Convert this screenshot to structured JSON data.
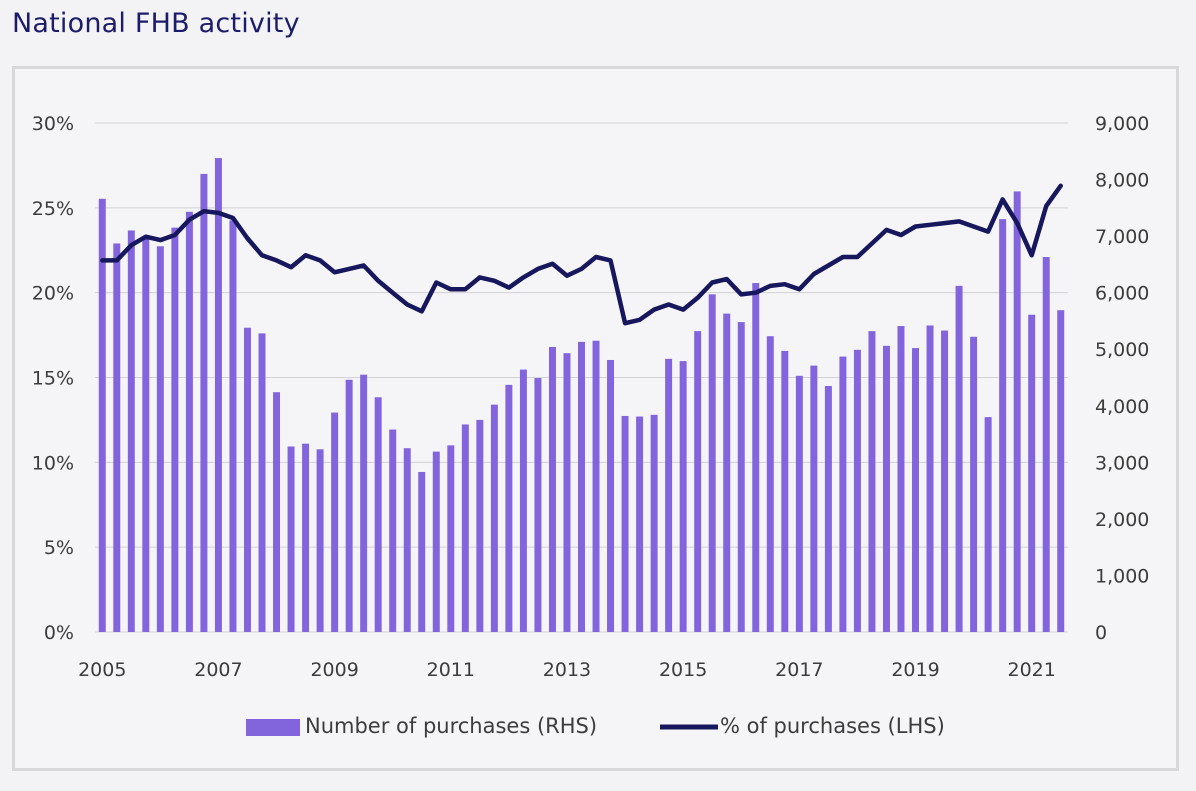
{
  "page": {
    "title": "National FHB activity"
  },
  "colors": {
    "bars": "#8264dc",
    "line": "#17175e",
    "grid": "#d2d2d6",
    "text": "#3c3c3c"
  },
  "chart_data": {
    "type": "bar",
    "title": "National FHB activity",
    "x_tick_labels": [
      "2005",
      "2007",
      "2009",
      "2011",
      "2013",
      "2015",
      "2017",
      "2019",
      "2021"
    ],
    "left_axis": {
      "ticks": [
        "0%",
        "5%",
        "10%",
        "15%",
        "20%",
        "25%",
        "30%"
      ],
      "ylim": [
        0,
        30
      ]
    },
    "right_axis": {
      "ticks": [
        "0",
        "1,000",
        "2,000",
        "3,000",
        "4,000",
        "5,000",
        "6,000",
        "7,000",
        "8,000",
        "9,000"
      ],
      "ylim": [
        0,
        9000
      ]
    },
    "grid": true,
    "legend_position": "bottom",
    "periods": [
      "2005 Q1",
      "2005 Q2",
      "2005 Q3",
      "2005 Q4",
      "2006 Q1",
      "2006 Q2",
      "2006 Q3",
      "2006 Q4",
      "2007 Q1",
      "2007 Q2",
      "2007 Q3",
      "2007 Q4",
      "2008 Q1",
      "2008 Q2",
      "2008 Q3",
      "2008 Q4",
      "2009 Q1",
      "2009 Q2",
      "2009 Q3",
      "2009 Q4",
      "2010 Q1",
      "2010 Q2",
      "2010 Q3",
      "2010 Q4",
      "2011 Q1",
      "2011 Q2",
      "2011 Q3",
      "2011 Q4",
      "2012 Q1",
      "2012 Q2",
      "2012 Q3",
      "2012 Q4",
      "2013 Q1",
      "2013 Q2",
      "2013 Q3",
      "2013 Q4",
      "2014 Q1",
      "2014 Q2",
      "2014 Q3",
      "2014 Q4",
      "2015 Q1",
      "2015 Q2",
      "2015 Q3",
      "2015 Q4",
      "2016 Q1",
      "2016 Q2",
      "2016 Q3",
      "2016 Q4",
      "2017 Q1",
      "2017 Q2",
      "2017 Q3",
      "2017 Q4",
      "2018 Q1",
      "2018 Q2",
      "2018 Q3",
      "2018 Q4",
      "2019 Q1",
      "2019 Q2",
      "2019 Q3",
      "2019 Q4",
      "2020 Q1",
      "2020 Q2",
      "2020 Q3",
      "2020 Q4",
      "2021 Q1",
      "2021 Q2",
      "2021 Q3"
    ],
    "series": [
      {
        "name": "Number of purchases (RHS)",
        "type": "bar",
        "axis": "right",
        "values": [
          7660,
          6870,
          7100,
          6950,
          6820,
          7150,
          7430,
          8100,
          8380,
          7280,
          5380,
          5280,
          4240,
          3280,
          3330,
          3230,
          3880,
          4460,
          4550,
          4150,
          3580,
          3250,
          2830,
          3190,
          3300,
          3670,
          3750,
          4020,
          4370,
          4640,
          4490,
          5040,
          4930,
          5130,
          5150,
          4810,
          3820,
          3810,
          3840,
          4830,
          4790,
          5320,
          5970,
          5630,
          5480,
          6170,
          5230,
          4970,
          4530,
          4710,
          4350,
          4870,
          4990,
          5320,
          5060,
          5410,
          5020,
          5420,
          5330,
          6120,
          5220,
          3800,
          7300,
          7790,
          5610,
          6630,
          5690
        ]
      },
      {
        "name": "% of purchases (LHS)",
        "type": "line",
        "axis": "left",
        "values": [
          21.9,
          21.9,
          22.8,
          23.3,
          23.1,
          23.4,
          24.3,
          24.8,
          24.7,
          24.4,
          23.2,
          22.2,
          21.9,
          21.5,
          22.2,
          21.9,
          21.2,
          21.4,
          21.6,
          20.7,
          20.0,
          19.3,
          18.9,
          20.6,
          20.2,
          20.2,
          20.9,
          20.7,
          20.3,
          20.9,
          21.4,
          21.7,
          21.0,
          21.4,
          22.1,
          21.9,
          18.2,
          18.4,
          19.0,
          19.3,
          19.0,
          19.7,
          20.6,
          20.8,
          19.9,
          20.0,
          20.4,
          20.5,
          20.2,
          21.1,
          21.6,
          22.1,
          22.1,
          22.9,
          23.7,
          23.4,
          23.9,
          24.0,
          24.1,
          24.2,
          23.9,
          23.6,
          25.5,
          24.1,
          22.2,
          25.1,
          26.3
        ]
      }
    ]
  }
}
